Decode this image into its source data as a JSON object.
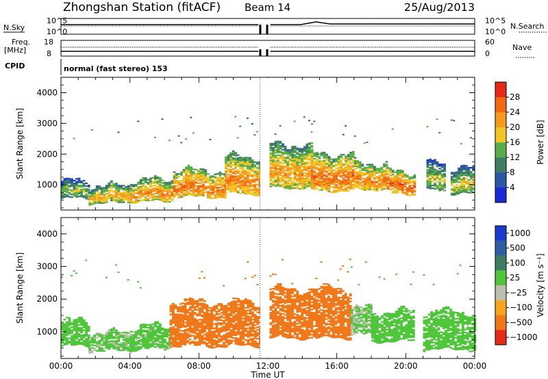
{
  "header": {
    "station": "Zhongshan Station (fitACF)",
    "beam": "Beam 14",
    "date": "25/Aug/2013"
  },
  "panels": {
    "nsky": {
      "left_label": "N.Sky",
      "left_ticks": [
        "10^5",
        "10^0"
      ],
      "right_label": "N.Search",
      "right_ticks": [
        "10^5",
        "10^0"
      ]
    },
    "freq": {
      "left_label_1": "Freq.",
      "left_label_2": "[MHz]",
      "left_ticks": [
        "18",
        "8"
      ],
      "right_label": "Nave",
      "right_ticks": [
        "60",
        "0"
      ]
    },
    "cpid": {
      "label": "CPID",
      "text": "normal (fast stereo) 153"
    }
  },
  "chart_data": [
    {
      "type": "heatmap",
      "title": "",
      "xlabel": "Time UT",
      "ylabel": "Slant Range [km]",
      "xlim": [
        "00:00",
        "24:00"
      ],
      "ylim": [
        180,
        4500
      ],
      "x_ticks": [
        "00:00",
        "04:00",
        "08:00",
        "12:00",
        "16:00",
        "20:00",
        "00:00"
      ],
      "y_ticks": [
        1000,
        2000,
        3000,
        4000
      ],
      "colorbar": {
        "label": "Power [dB]",
        "range": [
          0,
          32
        ],
        "ticks": [
          4,
          8,
          12,
          16,
          20,
          24,
          28
        ],
        "colors": [
          "#1a2ad6",
          "#2a56a8",
          "#3f7d64",
          "#5aae4a",
          "#f0c626",
          "#f39a1f",
          "#f06a14",
          "#e7291b"
        ]
      },
      "data_gap_utc": [
        11.55,
        12.05
      ],
      "segments": [
        {
          "t": [
            0.0,
            1.6
          ],
          "r": [
            550,
            1100
          ],
          "power": 17
        },
        {
          "t": [
            1.6,
            4.0
          ],
          "r": [
            400,
            950
          ],
          "power": 22
        },
        {
          "t": [
            4.0,
            6.5
          ],
          "r": [
            450,
            1150
          ],
          "power": 24
        },
        {
          "t": [
            6.5,
            9.5
          ],
          "r": [
            600,
            1450
          ],
          "power": 26
        },
        {
          "t": [
            9.5,
            11.5
          ],
          "r": [
            700,
            1900
          ],
          "power": 25
        },
        {
          "t": [
            12.1,
            14.5
          ],
          "r": [
            900,
            2300
          ],
          "power": 23
        },
        {
          "t": [
            14.5,
            17.0
          ],
          "r": [
            800,
            2000
          ],
          "power": 26
        },
        {
          "t": [
            17.0,
            18.9
          ],
          "r": [
            850,
            1700
          ],
          "power": 25
        },
        {
          "t": [
            18.9,
            20.5
          ],
          "r": [
            700,
            1400
          ],
          "power": 27
        },
        {
          "t": [
            21.2,
            22.2
          ],
          "r": [
            800,
            1700
          ],
          "power": 18
        },
        {
          "t": [
            22.6,
            24.0
          ],
          "r": [
            700,
            1500
          ],
          "power": 19
        }
      ]
    },
    {
      "type": "heatmap",
      "title": "",
      "xlabel": "Time UT",
      "ylabel": "Slant Range [km]",
      "xlim": [
        "00:00",
        "24:00"
      ],
      "ylim": [
        180,
        4500
      ],
      "x_ticks": [
        "00:00",
        "04:00",
        "08:00",
        "12:00",
        "16:00",
        "20:00",
        "00:00"
      ],
      "y_ticks": [
        1000,
        2000,
        3000,
        4000
      ],
      "colorbar": {
        "label": "Velocity [m s⁻¹]",
        "tick_labels": [
          "1000",
          "500",
          "100",
          "25",
          "−25",
          "−100",
          "−500",
          "−1000"
        ],
        "colors": [
          "#1a3ad0",
          "#2f5fa2",
          "#3d7e62",
          "#4fc63a",
          "#bfbfb0",
          "#f7a51e",
          "#f07818",
          "#e62a18"
        ]
      },
      "data_gap_utc": [
        11.55,
        12.05
      ],
      "segments": [
        {
          "t": [
            0.0,
            1.6
          ],
          "r": [
            550,
            1300
          ],
          "velocity": 60
        },
        {
          "t": [
            1.6,
            4.0
          ],
          "r": [
            400,
            950
          ],
          "velocity": 40
        },
        {
          "t": [
            4.0,
            6.3
          ],
          "r": [
            450,
            1150
          ],
          "velocity": 50
        },
        {
          "t": [
            6.3,
            11.5
          ],
          "r": [
            550,
            1900
          ],
          "velocity": -150
        },
        {
          "t": [
            12.1,
            16.8
          ],
          "r": [
            800,
            2300
          ],
          "velocity": -180
        },
        {
          "t": [
            16.8,
            18.0
          ],
          "r": [
            900,
            1700
          ],
          "velocity": 30
        },
        {
          "t": [
            18.0,
            20.5
          ],
          "r": [
            700,
            1600
          ],
          "velocity": 70
        },
        {
          "t": [
            21.0,
            24.0
          ],
          "r": [
            450,
            1600
          ],
          "velocity": 60
        }
      ]
    }
  ]
}
